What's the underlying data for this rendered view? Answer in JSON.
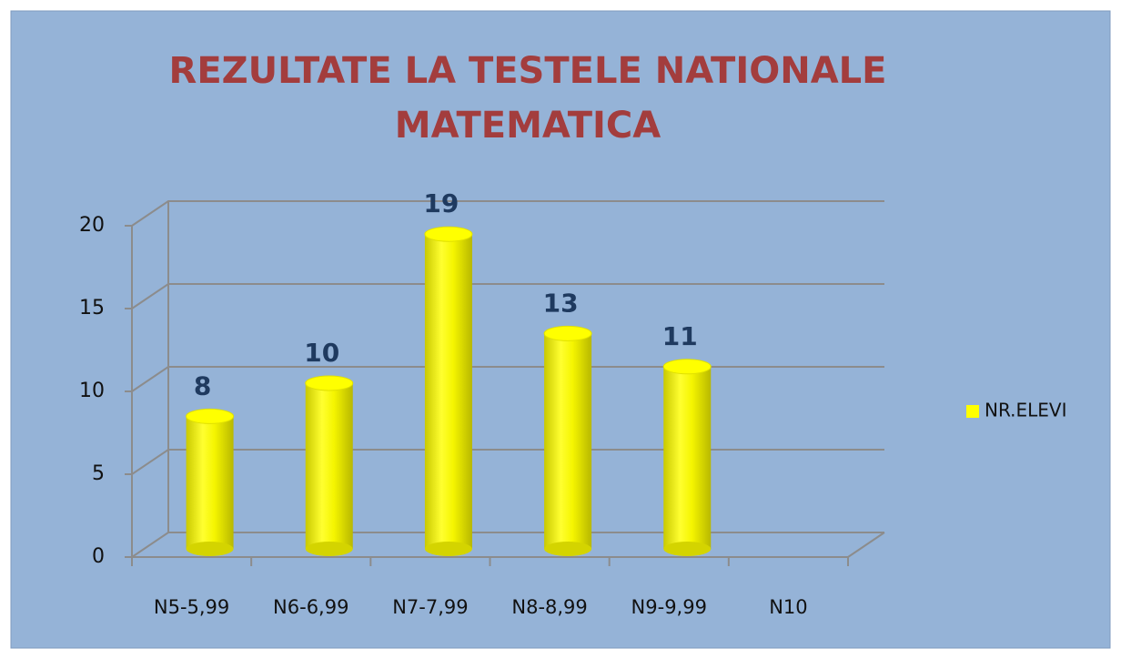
{
  "chart_data": {
    "type": "bar3d",
    "title": [
      "REZULTATE LA TESTELE NATIONALE",
      "MATEMATICA"
    ],
    "categories": [
      "N5-5,99",
      "N6-6,99",
      "N7-7,99",
      "N8-8,99",
      "N9-9,99",
      "N10"
    ],
    "series": [
      {
        "name": "NR.ELEVI",
        "color": "#ffff00",
        "values": [
          8,
          10,
          19,
          13,
          11,
          null
        ]
      }
    ],
    "ylim": [
      0,
      20
    ],
    "yticks": [
      0,
      5,
      10,
      15,
      20
    ],
    "grid": true,
    "legend": "right",
    "data_labels": true
  }
}
